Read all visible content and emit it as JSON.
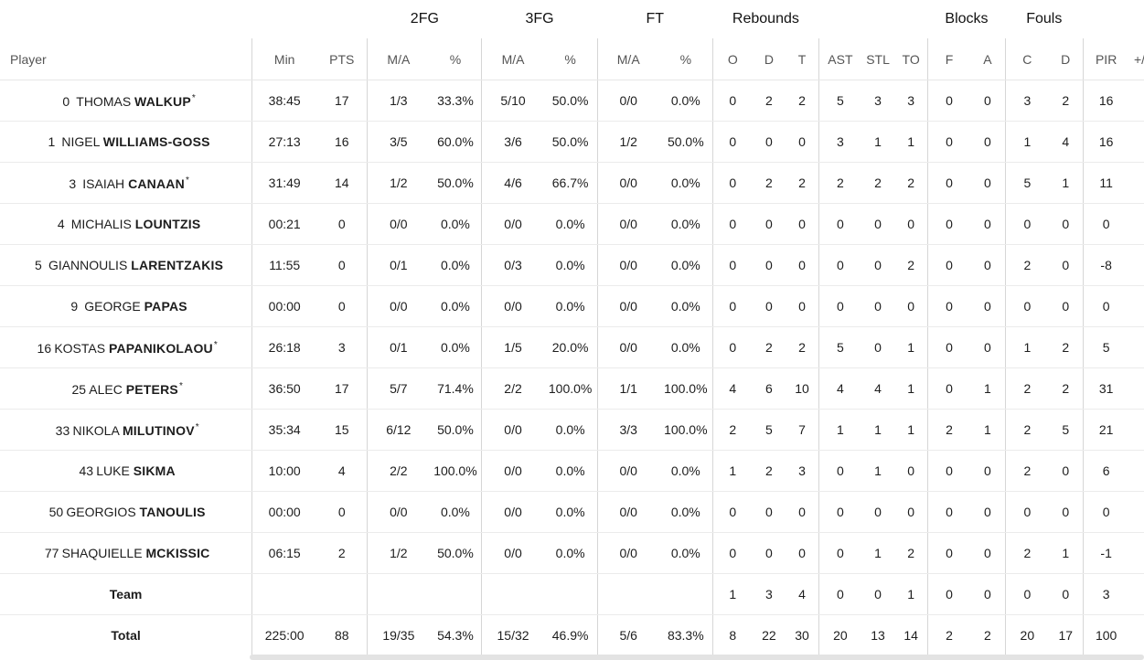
{
  "groups": {
    "fg2": "2FG",
    "fg3": "3FG",
    "ft": "FT",
    "rebounds": "Rebounds",
    "blocks": "Blocks",
    "fouls": "Fouls"
  },
  "columns": [
    "Player",
    "Min",
    "PTS",
    "M/A",
    "%",
    "M/A",
    "%",
    "M/A",
    "%",
    "O",
    "D",
    "T",
    "AST",
    "STL",
    "TO",
    "F",
    "A",
    "C",
    "D",
    "PIR",
    "+/-"
  ],
  "players": [
    {
      "num": "0",
      "first": "THOMAS",
      "last": "WALKUP",
      "star": true,
      "stats": [
        "38:45",
        "17",
        "1/3",
        "33.3%",
        "5/10",
        "50.0%",
        "0/0",
        "0.0%",
        "0",
        "2",
        "2",
        "5",
        "3",
        "3",
        "0",
        "0",
        "3",
        "2",
        "16",
        ""
      ]
    },
    {
      "num": "1",
      "first": "NIGEL",
      "last": "WILLIAMS-GOSS",
      "star": false,
      "stats": [
        "27:13",
        "16",
        "3/5",
        "60.0%",
        "3/6",
        "50.0%",
        "1/2",
        "50.0%",
        "0",
        "0",
        "0",
        "3",
        "1",
        "1",
        "0",
        "0",
        "1",
        "4",
        "16",
        ""
      ]
    },
    {
      "num": "3",
      "first": "ISAIAH",
      "last": "CANAAN",
      "star": true,
      "stats": [
        "31:49",
        "14",
        "1/2",
        "50.0%",
        "4/6",
        "66.7%",
        "0/0",
        "0.0%",
        "0",
        "2",
        "2",
        "2",
        "2",
        "2",
        "0",
        "0",
        "5",
        "1",
        "11",
        ""
      ]
    },
    {
      "num": "4",
      "first": "MICHALIS",
      "last": "LOUNTZIS",
      "star": false,
      "stats": [
        "00:21",
        "0",
        "0/0",
        "0.0%",
        "0/0",
        "0.0%",
        "0/0",
        "0.0%",
        "0",
        "0",
        "0",
        "0",
        "0",
        "0",
        "0",
        "0",
        "0",
        "0",
        "0",
        ""
      ]
    },
    {
      "num": "5",
      "first": "GIANNOULIS",
      "last": "LARENTZAKIS",
      "star": false,
      "stats": [
        "11:55",
        "0",
        "0/1",
        "0.0%",
        "0/3",
        "0.0%",
        "0/0",
        "0.0%",
        "0",
        "0",
        "0",
        "0",
        "0",
        "2",
        "0",
        "0",
        "2",
        "0",
        "-8",
        ""
      ]
    },
    {
      "num": "9",
      "first": "GEORGE",
      "last": "PAPAS",
      "star": false,
      "stats": [
        "00:00",
        "0",
        "0/0",
        "0.0%",
        "0/0",
        "0.0%",
        "0/0",
        "0.0%",
        "0",
        "0",
        "0",
        "0",
        "0",
        "0",
        "0",
        "0",
        "0",
        "0",
        "0",
        ""
      ]
    },
    {
      "num": "16",
      "first": "KOSTAS",
      "last": "PAPANIKOLAOU",
      "star": true,
      "stats": [
        "26:18",
        "3",
        "0/1",
        "0.0%",
        "1/5",
        "20.0%",
        "0/0",
        "0.0%",
        "0",
        "2",
        "2",
        "5",
        "0",
        "1",
        "0",
        "0",
        "1",
        "2",
        "5",
        ""
      ]
    },
    {
      "num": "25",
      "first": "ALEC",
      "last": "PETERS",
      "star": true,
      "stats": [
        "36:50",
        "17",
        "5/7",
        "71.4%",
        "2/2",
        "100.0%",
        "1/1",
        "100.0%",
        "4",
        "6",
        "10",
        "4",
        "4",
        "1",
        "0",
        "1",
        "2",
        "2",
        "31",
        ""
      ]
    },
    {
      "num": "33",
      "first": "NIKOLA",
      "last": "MILUTINOV",
      "star": true,
      "stats": [
        "35:34",
        "15",
        "6/12",
        "50.0%",
        "0/0",
        "0.0%",
        "3/3",
        "100.0%",
        "2",
        "5",
        "7",
        "1",
        "1",
        "1",
        "2",
        "1",
        "2",
        "5",
        "21",
        ""
      ]
    },
    {
      "num": "43",
      "first": "LUKE",
      "last": "SIKMA",
      "star": false,
      "stats": [
        "10:00",
        "4",
        "2/2",
        "100.0%",
        "0/0",
        "0.0%",
        "0/0",
        "0.0%",
        "1",
        "2",
        "3",
        "0",
        "1",
        "0",
        "0",
        "0",
        "2",
        "0",
        "6",
        ""
      ]
    },
    {
      "num": "50",
      "first": "GEORGIOS",
      "last": "TANOULIS",
      "star": false,
      "stats": [
        "00:00",
        "0",
        "0/0",
        "0.0%",
        "0/0",
        "0.0%",
        "0/0",
        "0.0%",
        "0",
        "0",
        "0",
        "0",
        "0",
        "0",
        "0",
        "0",
        "0",
        "0",
        "0",
        ""
      ]
    },
    {
      "num": "77",
      "first": "SHAQUIELLE",
      "last": "MCKISSIC",
      "star": false,
      "stats": [
        "06:15",
        "2",
        "1/2",
        "50.0%",
        "0/0",
        "0.0%",
        "0/0",
        "0.0%",
        "0",
        "0",
        "0",
        "0",
        "1",
        "2",
        "0",
        "0",
        "2",
        "1",
        "-1",
        ""
      ]
    }
  ],
  "team": {
    "label": "Team",
    "stats": [
      "",
      "",
      "",
      "",
      "",
      "",
      "",
      "",
      "1",
      "3",
      "4",
      "0",
      "0",
      "1",
      "0",
      "0",
      "0",
      "0",
      "3",
      ""
    ]
  },
  "total": {
    "label": "Total",
    "stats": [
      "225:00",
      "88",
      "19/35",
      "54.3%",
      "15/32",
      "46.9%",
      "5/6",
      "83.3%",
      "8",
      "22",
      "30",
      "20",
      "13",
      "14",
      "2",
      "2",
      "20",
      "17",
      "100",
      ""
    ]
  }
}
